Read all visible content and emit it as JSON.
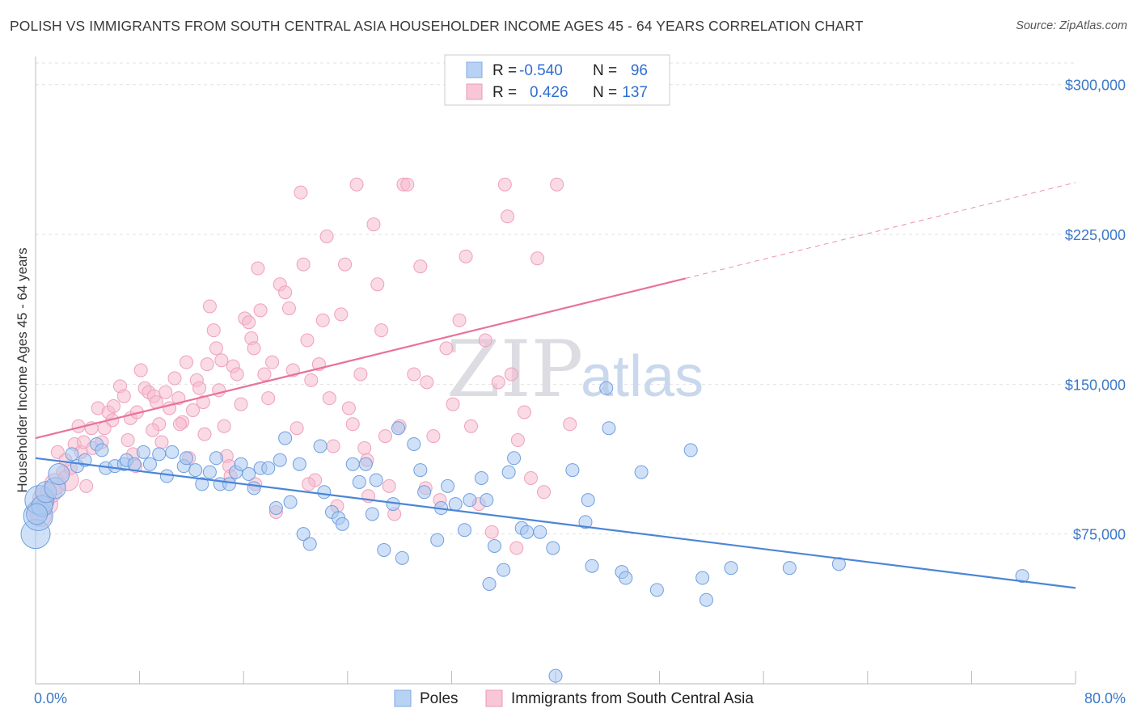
{
  "title": "POLISH VS IMMIGRANTS FROM SOUTH CENTRAL ASIA HOUSEHOLDER INCOME AGES 45 - 64 YEARS CORRELATION CHART",
  "source": "Source: ZipAtlas.com",
  "watermark": {
    "zip": "ZIP",
    "atlas": "atlas"
  },
  "legend": {
    "rows": [
      {
        "r_label": "R =",
        "r_value": "-0.540",
        "n_label": "N =",
        "n_value": "96",
        "color": "#8ab4e8"
      },
      {
        "r_label": "R =",
        "r_value": "0.426",
        "n_label": "N =",
        "n_value": "137",
        "color": "#f2a6bf"
      }
    ]
  },
  "bottom_legend": {
    "poles": "Poles",
    "immigrants": "Immigrants from South Central Asia"
  },
  "chart_data": {
    "type": "scatter",
    "title": "POLISH VS IMMIGRANTS FROM SOUTH CENTRAL ASIA HOUSEHOLDER INCOME AGES 45 - 64 YEARS CORRELATION CHART",
    "xlabel": "",
    "ylabel": "Householder Income Ages 45 - 64 years",
    "x_tick_labels": [
      "0.0%",
      "80.0%"
    ],
    "y_tick_labels": [
      "$75,000",
      "$150,000",
      "$225,000",
      "$300,000"
    ],
    "y_ticks": [
      75000,
      150000,
      225000,
      300000
    ],
    "xlim": [
      0,
      80
    ],
    "ylim": [
      0,
      310000
    ],
    "grid": true,
    "legend_position": "top-center",
    "colors": {
      "poles": "#4a86d8",
      "immigrants": "#e8729a",
      "poles_fill": "#a9c8f0",
      "immigrants_fill": "#f6bcd0"
    },
    "series": [
      {
        "name": "Poles",
        "trend": {
          "x": [
            0,
            80
          ],
          "y": [
            113000,
            48000
          ]
        },
        "points": [
          [
            0,
            75000,
            3
          ],
          [
            0.2,
            84000,
            3
          ],
          [
            0.3,
            92000,
            3
          ],
          [
            0.5,
            89000,
            2
          ],
          [
            0.8,
            96000,
            2
          ],
          [
            1.5,
            98000,
            2
          ],
          [
            1.8,
            105000,
            2
          ],
          [
            2.8,
            115000,
            1
          ],
          [
            3.2,
            109000,
            1
          ],
          [
            3.8,
            112000,
            1
          ],
          [
            4.7,
            120000,
            1
          ],
          [
            5.1,
            117000,
            1
          ],
          [
            5.4,
            108000,
            1
          ],
          [
            6.1,
            109000,
            1
          ],
          [
            6.8,
            110000,
            1
          ],
          [
            7.0,
            112000,
            1
          ],
          [
            7.6,
            110000,
            1
          ],
          [
            8.3,
            116000,
            1
          ],
          [
            8.8,
            110000,
            1
          ],
          [
            9.5,
            115000,
            1
          ],
          [
            10.1,
            104000,
            1
          ],
          [
            10.5,
            116000,
            1
          ],
          [
            11.4,
            109000,
            1
          ],
          [
            11.6,
            113000,
            1
          ],
          [
            12.3,
            107000,
            1
          ],
          [
            12.8,
            100000,
            1
          ],
          [
            13.4,
            106000,
            1
          ],
          [
            13.9,
            113000,
            1
          ],
          [
            14.2,
            100000,
            1
          ],
          [
            14.9,
            100000,
            1
          ],
          [
            15.4,
            106000,
            1
          ],
          [
            15.8,
            110000,
            1
          ],
          [
            16.4,
            105000,
            1
          ],
          [
            16.8,
            98000,
            1
          ],
          [
            17.3,
            108000,
            1
          ],
          [
            17.9,
            108000,
            1
          ],
          [
            18.5,
            88000,
            1
          ],
          [
            18.8,
            112000,
            1
          ],
          [
            19.2,
            123000,
            1
          ],
          [
            19.6,
            91000,
            1
          ],
          [
            20.3,
            110000,
            1
          ],
          [
            20.6,
            75000,
            1
          ],
          [
            21.1,
            70000,
            1
          ],
          [
            21.9,
            119000,
            1
          ],
          [
            22.2,
            96000,
            1
          ],
          [
            22.8,
            86000,
            1
          ],
          [
            23.3,
            83000,
            1
          ],
          [
            23.6,
            80000,
            1
          ],
          [
            24.4,
            110000,
            1
          ],
          [
            24.9,
            101000,
            1
          ],
          [
            25.4,
            110000,
            1
          ],
          [
            25.9,
            85000,
            1
          ],
          [
            26.2,
            102000,
            1
          ],
          [
            26.8,
            67000,
            1
          ],
          [
            27.5,
            90000,
            1
          ],
          [
            27.9,
            128000,
            1
          ],
          [
            28.2,
            63000,
            1
          ],
          [
            29.1,
            120000,
            1
          ],
          [
            29.6,
            107000,
            1
          ],
          [
            29.9,
            96000,
            1
          ],
          [
            30.9,
            72000,
            1
          ],
          [
            31.2,
            88000,
            1
          ],
          [
            31.7,
            99000,
            1
          ],
          [
            32.3,
            90000,
            1
          ],
          [
            33.0,
            77000,
            1
          ],
          [
            33.4,
            92000,
            1
          ],
          [
            34.3,
            103000,
            1
          ],
          [
            34.7,
            92000,
            1
          ],
          [
            34.9,
            50000,
            1
          ],
          [
            35.3,
            69000,
            1
          ],
          [
            36.0,
            57000,
            1
          ],
          [
            36.4,
            106000,
            1
          ],
          [
            36.8,
            113000,
            1
          ],
          [
            37.4,
            78000,
            1
          ],
          [
            37.8,
            76000,
            1
          ],
          [
            38.8,
            76000,
            1
          ],
          [
            39.8,
            68000,
            1
          ],
          [
            40.0,
            4000,
            1
          ],
          [
            41.3,
            107000,
            1
          ],
          [
            42.3,
            81000,
            1
          ],
          [
            42.5,
            92000,
            1
          ],
          [
            42.8,
            59000,
            1
          ],
          [
            43.9,
            148000,
            1
          ],
          [
            44.1,
            128000,
            1
          ],
          [
            45.1,
            56000,
            1
          ],
          [
            45.4,
            53000,
            1
          ],
          [
            46.6,
            106000,
            1
          ],
          [
            47.8,
            47000,
            1
          ],
          [
            50.4,
            117000,
            1
          ],
          [
            51.3,
            53000,
            1
          ],
          [
            51.6,
            42000,
            1
          ],
          [
            53.5,
            58000,
            1
          ],
          [
            58.0,
            58000,
            1
          ],
          [
            61.8,
            60000,
            1
          ],
          [
            75.9,
            54000,
            1
          ],
          [
            0.1,
            85000,
            2
          ]
        ]
      },
      {
        "name": "Immigrants from South Central Asia",
        "trend": {
          "x": [
            0,
            50
          ],
          "y": [
            123000,
            203000
          ],
          "dashed_to": {
            "x": 80,
            "y": 251000
          }
        },
        "points": [
          [
            0.2,
            87000,
            2
          ],
          [
            0.4,
            84000,
            2
          ],
          [
            0.6,
            93000,
            2
          ],
          [
            0.9,
            90000,
            2
          ],
          [
            1.2,
            96000,
            2
          ],
          [
            1.5,
            100000,
            2
          ],
          [
            1.7,
            116000,
            1
          ],
          [
            2.1,
            106000,
            1
          ],
          [
            2.5,
            102000,
            2
          ],
          [
            2.7,
            108000,
            1
          ],
          [
            3.0,
            120000,
            1
          ],
          [
            3.3,
            129000,
            1
          ],
          [
            3.5,
            116000,
            1
          ],
          [
            3.7,
            121000,
            1
          ],
          [
            3.9,
            99000,
            1
          ],
          [
            4.3,
            128000,
            1
          ],
          [
            4.4,
            118000,
            1
          ],
          [
            4.8,
            138000,
            1
          ],
          [
            5.1,
            121000,
            1
          ],
          [
            5.6,
            136000,
            1
          ],
          [
            5.9,
            132000,
            1
          ],
          [
            6.0,
            139000,
            1
          ],
          [
            6.5,
            149000,
            1
          ],
          [
            6.8,
            144000,
            1
          ],
          [
            7.1,
            122000,
            1
          ],
          [
            7.3,
            133000,
            1
          ],
          [
            7.5,
            115000,
            1
          ],
          [
            7.8,
            136000,
            1
          ],
          [
            8.1,
            157000,
            1
          ],
          [
            8.4,
            148000,
            1
          ],
          [
            8.7,
            146000,
            1
          ],
          [
            9.1,
            144000,
            1
          ],
          [
            9.3,
            141000,
            1
          ],
          [
            9.5,
            130000,
            1
          ],
          [
            9.7,
            121000,
            1
          ],
          [
            10.0,
            146000,
            1
          ],
          [
            10.3,
            138000,
            1
          ],
          [
            10.7,
            153000,
            1
          ],
          [
            11.0,
            143000,
            1
          ],
          [
            11.3,
            131000,
            1
          ],
          [
            11.6,
            161000,
            1
          ],
          [
            11.8,
            113000,
            1
          ],
          [
            12.1,
            137000,
            1
          ],
          [
            12.4,
            152000,
            1
          ],
          [
            12.6,
            148000,
            1
          ],
          [
            12.9,
            141000,
            1
          ],
          [
            13.2,
            160000,
            1
          ],
          [
            13.4,
            189000,
            1
          ],
          [
            13.7,
            177000,
            1
          ],
          [
            13.9,
            168000,
            1
          ],
          [
            14.1,
            147000,
            1
          ],
          [
            14.3,
            162000,
            1
          ],
          [
            14.5,
            129000,
            1
          ],
          [
            14.7,
            114000,
            1
          ],
          [
            14.9,
            109000,
            1
          ],
          [
            15.2,
            159000,
            1
          ],
          [
            15.5,
            155000,
            1
          ],
          [
            15.8,
            140000,
            1
          ],
          [
            16.1,
            183000,
            1
          ],
          [
            16.4,
            181000,
            1
          ],
          [
            16.6,
            173000,
            1
          ],
          [
            16.8,
            168000,
            1
          ],
          [
            17.1,
            208000,
            1
          ],
          [
            17.3,
            187000,
            1
          ],
          [
            17.6,
            155000,
            1
          ],
          [
            17.9,
            143000,
            1
          ],
          [
            18.2,
            161000,
            1
          ],
          [
            18.5,
            86000,
            1
          ],
          [
            18.8,
            200000,
            1
          ],
          [
            19.2,
            196000,
            1
          ],
          [
            19.5,
            188000,
            1
          ],
          [
            19.8,
            157000,
            1
          ],
          [
            20.1,
            128000,
            1
          ],
          [
            20.4,
            246000,
            1
          ],
          [
            20.6,
            210000,
            1
          ],
          [
            20.9,
            172000,
            1
          ],
          [
            21.2,
            152000,
            1
          ],
          [
            21.5,
            102000,
            1
          ],
          [
            21.8,
            160000,
            1
          ],
          [
            22.1,
            182000,
            1
          ],
          [
            22.4,
            224000,
            1
          ],
          [
            22.6,
            143000,
            1
          ],
          [
            22.9,
            119000,
            1
          ],
          [
            23.2,
            89000,
            1
          ],
          [
            23.5,
            185000,
            1
          ],
          [
            23.8,
            210000,
            1
          ],
          [
            24.1,
            138000,
            1
          ],
          [
            24.4,
            130000,
            1
          ],
          [
            24.7,
            250000,
            1
          ],
          [
            25.0,
            155000,
            1
          ],
          [
            25.3,
            118000,
            1
          ],
          [
            25.6,
            94000,
            1
          ],
          [
            26.0,
            230000,
            1
          ],
          [
            26.3,
            200000,
            1
          ],
          [
            26.6,
            177000,
            1
          ],
          [
            26.9,
            124000,
            1
          ],
          [
            27.2,
            99000,
            1
          ],
          [
            27.6,
            85000,
            1
          ],
          [
            28.0,
            129000,
            1
          ],
          [
            28.3,
            250000,
            1
          ],
          [
            28.6,
            250000,
            1
          ],
          [
            29.1,
            155000,
            1
          ],
          [
            29.6,
            209000,
            1
          ],
          [
            30.1,
            151000,
            1
          ],
          [
            30.6,
            124000,
            1
          ],
          [
            31.1,
            92000,
            1
          ],
          [
            31.6,
            168000,
            1
          ],
          [
            32.1,
            140000,
            1
          ],
          [
            32.6,
            182000,
            1
          ],
          [
            33.1,
            214000,
            1
          ],
          [
            33.5,
            129000,
            1
          ],
          [
            34.1,
            90000,
            1
          ],
          [
            34.6,
            172000,
            1
          ],
          [
            35.1,
            76000,
            1
          ],
          [
            35.6,
            151000,
            1
          ],
          [
            36.1,
            250000,
            1
          ],
          [
            36.3,
            234000,
            1
          ],
          [
            36.6,
            155000,
            1
          ],
          [
            37.1,
            122000,
            1
          ],
          [
            37.6,
            136000,
            1
          ],
          [
            38.1,
            103000,
            1
          ],
          [
            38.6,
            213000,
            1
          ],
          [
            39.1,
            96000,
            1
          ],
          [
            40.1,
            250000,
            1
          ],
          [
            41.1,
            130000,
            1
          ],
          [
            11.1,
            130000,
            1
          ],
          [
            5.3,
            128000,
            1
          ],
          [
            9.0,
            127000,
            1
          ],
          [
            15.0,
            104000,
            1
          ],
          [
            21.0,
            100000,
            1
          ],
          [
            30.0,
            98000,
            1
          ],
          [
            37.0,
            68000,
            1
          ],
          [
            2.3,
            112000,
            1
          ],
          [
            13.0,
            125000,
            1
          ],
          [
            25.5,
            112000,
            1
          ],
          [
            7.7,
            109000,
            1
          ],
          [
            16.9,
            100000,
            1
          ]
        ]
      }
    ]
  }
}
